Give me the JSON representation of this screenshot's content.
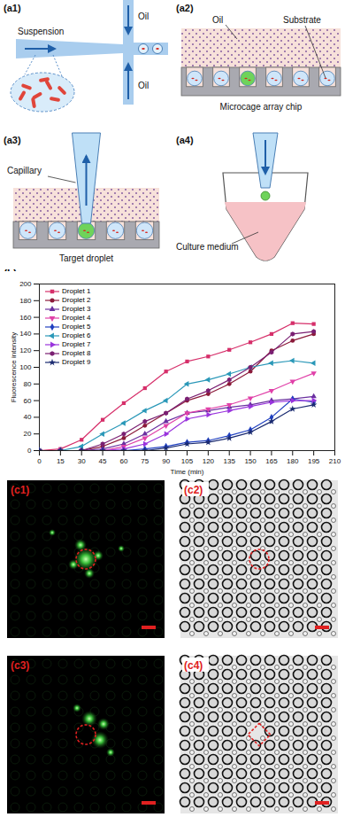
{
  "diagram": {
    "a1": {
      "label": "(a1)",
      "suspension": "Suspension",
      "oil_top": "Oil",
      "oil_bottom": "Oil"
    },
    "a2": {
      "label": "(a2)",
      "oil": "Oil",
      "substrate": "Substrate",
      "chip": "Microcage array chip"
    },
    "a3": {
      "label": "(a3)",
      "capillary": "Capillary",
      "target": "Target droplet"
    },
    "a4": {
      "label": "(a4)",
      "medium": "Culture medium"
    }
  },
  "images": {
    "c1": {
      "label": "(c1)"
    },
    "c2": {
      "label": "(c2)"
    },
    "c3": {
      "label": "(c3)"
    },
    "c4": {
      "label": "(c4)"
    }
  },
  "chart_data": {
    "type": "line",
    "panel_label": "(b)",
    "xlabel": "Time (min)",
    "ylabel": "Fluorescence intensity",
    "x": [
      0,
      15,
      30,
      45,
      60,
      75,
      90,
      105,
      120,
      135,
      150,
      165,
      180,
      195
    ],
    "xlim": [
      0,
      210
    ],
    "xticks": [
      0,
      15,
      30,
      45,
      60,
      75,
      90,
      105,
      120,
      135,
      150,
      165,
      180,
      195,
      210
    ],
    "ylim": [
      0,
      200
    ],
    "yticks": [
      0,
      20,
      40,
      60,
      80,
      100,
      120,
      140,
      160,
      180,
      200
    ],
    "grid": false,
    "legend": "upper left",
    "series": [
      {
        "name": "Droplet 1",
        "color": "#d62f6a",
        "marker": "square",
        "values": [
          0,
          2,
          13,
          37,
          57,
          75,
          95,
          107,
          113,
          121,
          130,
          140,
          153,
          152
        ]
      },
      {
        "name": "Droplet 2",
        "color": "#8b1a3a",
        "marker": "circle",
        "values": [
          0,
          0,
          0,
          5,
          15,
          30,
          45,
          60,
          68,
          80,
          95,
          120,
          132,
          140
        ]
      },
      {
        "name": "Droplet 3",
        "color": "#6a2fa0",
        "marker": "triangle-up",
        "values": [
          0,
          0,
          0,
          2,
          8,
          20,
          35,
          45,
          48,
          52,
          55,
          60,
          62,
          65
        ]
      },
      {
        "name": "Droplet 4",
        "color": "#e040a8",
        "marker": "triangle-down",
        "values": [
          0,
          0,
          0,
          0,
          5,
          15,
          30,
          45,
          50,
          55,
          63,
          72,
          83,
          93
        ]
      },
      {
        "name": "Droplet 5",
        "color": "#2040c0",
        "marker": "diamond",
        "values": [
          0,
          0,
          0,
          0,
          0,
          2,
          5,
          10,
          12,
          18,
          25,
          40,
          62,
          58
        ]
      },
      {
        "name": "Droplet 6",
        "color": "#2a98b8",
        "marker": "triangle-left",
        "values": [
          0,
          0,
          5,
          20,
          33,
          48,
          60,
          80,
          85,
          92,
          100,
          105,
          108,
          105
        ]
      },
      {
        "name": "Droplet 7",
        "color": "#9933dd",
        "marker": "triangle-right",
        "values": [
          0,
          0,
          0,
          0,
          2,
          8,
          20,
          38,
          43,
          48,
          53,
          58,
          60,
          60
        ]
      },
      {
        "name": "Droplet 8",
        "color": "#7a1f72",
        "marker": "hexagon",
        "values": [
          0,
          0,
          0,
          8,
          20,
          35,
          45,
          62,
          72,
          85,
          100,
          118,
          140,
          143
        ]
      },
      {
        "name": "Droplet 9",
        "color": "#1a2a70",
        "marker": "star",
        "values": [
          0,
          0,
          0,
          0,
          0,
          0,
          3,
          8,
          10,
          15,
          22,
          35,
          50,
          55
        ]
      }
    ]
  }
}
